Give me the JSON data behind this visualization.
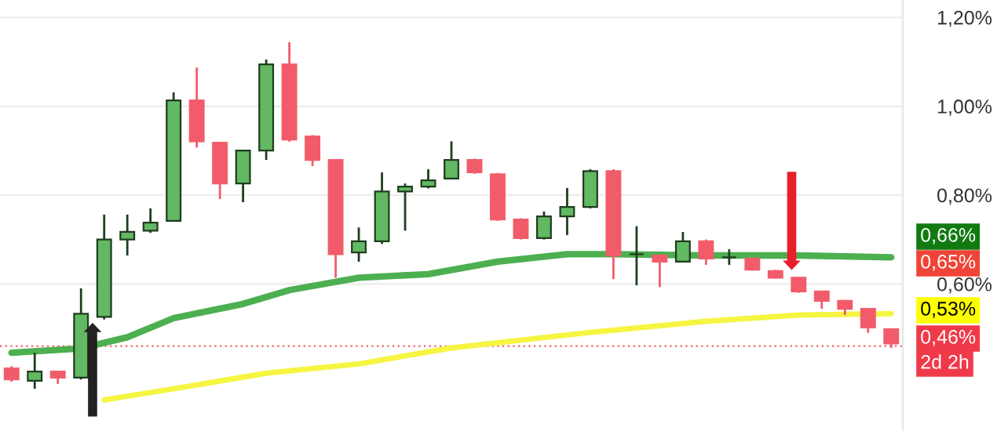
{
  "chart_data": {
    "type": "candlestick",
    "categories": [
      null,
      null,
      null,
      null,
      null,
      null,
      null,
      null,
      null,
      null,
      null,
      null,
      null,
      null,
      null,
      null,
      null,
      null,
      null,
      null,
      null,
      null,
      null,
      null,
      null,
      null,
      null,
      null,
      null,
      null,
      null,
      null,
      null,
      null,
      null,
      null,
      null,
      null,
      null
    ],
    "ohlc": [
      [
        0.41,
        0.415,
        0.38,
        0.385
      ],
      [
        0.382,
        0.445,
        0.364,
        0.403
      ],
      [
        0.403,
        0.405,
        0.375,
        0.389
      ],
      [
        0.389,
        0.59,
        0.385,
        0.533
      ],
      [
        0.526,
        0.756,
        0.52,
        0.7
      ],
      [
        0.7,
        0.756,
        0.664,
        0.717
      ],
      [
        0.72,
        0.77,
        0.715,
        0.738
      ],
      [
        0.742,
        1.031,
        0.74,
        1.013
      ],
      [
        1.013,
        1.087,
        0.907,
        0.921
      ],
      [
        0.918,
        0.92,
        0.791,
        0.826
      ],
      [
        0.826,
        0.9,
        0.784,
        0.9
      ],
      [
        0.9,
        1.105,
        0.879,
        1.094
      ],
      [
        1.094,
        1.144,
        0.92,
        0.925
      ],
      [
        0.932,
        0.935,
        0.865,
        0.879
      ],
      [
        0.879,
        0.88,
        0.614,
        0.667
      ],
      [
        0.671,
        0.727,
        0.65,
        0.696
      ],
      [
        0.696,
        0.851,
        0.69,
        0.808
      ],
      [
        0.808,
        0.826,
        0.72,
        0.819
      ],
      [
        0.819,
        0.858,
        0.815,
        0.833
      ],
      [
        0.837,
        0.921,
        0.835,
        0.879
      ],
      [
        0.879,
        0.882,
        0.848,
        0.851
      ],
      [
        0.847,
        0.85,
        0.742,
        0.745
      ],
      [
        0.745,
        0.748,
        0.7,
        0.703
      ],
      [
        0.703,
        0.763,
        0.7,
        0.752
      ],
      [
        0.752,
        0.816,
        0.71,
        0.773
      ],
      [
        0.773,
        0.858,
        0.77,
        0.854
      ],
      [
        0.854,
        0.858,
        0.611,
        0.664
      ],
      [
        0.667,
        0.73,
        0.597,
        0.667
      ],
      [
        0.664,
        0.667,
        0.593,
        0.65
      ],
      [
        0.65,
        0.717,
        0.648,
        0.696
      ],
      [
        0.696,
        0.7,
        0.643,
        0.657
      ],
      [
        0.66,
        0.678,
        0.643,
        0.66
      ],
      [
        0.657,
        0.66,
        0.63,
        0.632
      ],
      [
        0.629,
        0.632,
        0.612,
        0.614
      ],
      [
        0.614,
        0.616,
        0.58,
        0.583
      ],
      [
        0.583,
        0.585,
        0.544,
        0.562
      ],
      [
        0.562,
        0.564,
        0.53,
        0.544
      ],
      [
        0.544,
        0.546,
        0.49,
        0.502
      ],
      [
        0.498,
        0.5,
        0.456,
        0.466
      ]
    ],
    "series": [
      {
        "type": "line",
        "color": "#4caf50",
        "values": [
          0.445,
          null,
          null,
          0.455,
          null,
          0.48,
          null,
          0.523,
          null,
          null,
          0.555,
          null,
          0.586,
          null,
          null,
          0.614,
          null,
          null,
          0.622,
          null,
          null,
          0.65,
          null,
          null,
          0.667,
          null,
          0.667,
          null,
          null,
          null,
          0.664,
          null,
          null,
          null,
          0.664,
          null,
          null,
          null,
          0.66
        ]
      },
      {
        "type": "line",
        "color": "#f5f542",
        "values": [
          null,
          null,
          null,
          null,
          0.339,
          null,
          null,
          0.364,
          null,
          null,
          null,
          0.399,
          null,
          null,
          null,
          0.42,
          null,
          null,
          null,
          0.456,
          null,
          null,
          null,
          null,
          null,
          0.491,
          null,
          null,
          null,
          null,
          0.516,
          null,
          null,
          null,
          0.53,
          null,
          null,
          null,
          0.533
        ]
      }
    ],
    "ylim": [
      0.269,
      1.239
    ],
    "yticks": [
      {
        "value": 0.6,
        "label": "0,60%"
      },
      {
        "value": 0.8,
        "label": "0,80%"
      },
      {
        "value": 1.0,
        "label": "1,00%"
      },
      {
        "value": 1.2,
        "label": "1,20%"
      }
    ],
    "ref_lines": [
      {
        "axis": "y",
        "value": 0.46,
        "color": "#f25c6a",
        "line_style": "dotted"
      }
    ],
    "annotations": [
      "0,66%",
      "0,65%",
      "0,53%",
      "0,46%",
      "2d 2h"
    ],
    "grid": "y",
    "tick_labels": "y"
  }
}
